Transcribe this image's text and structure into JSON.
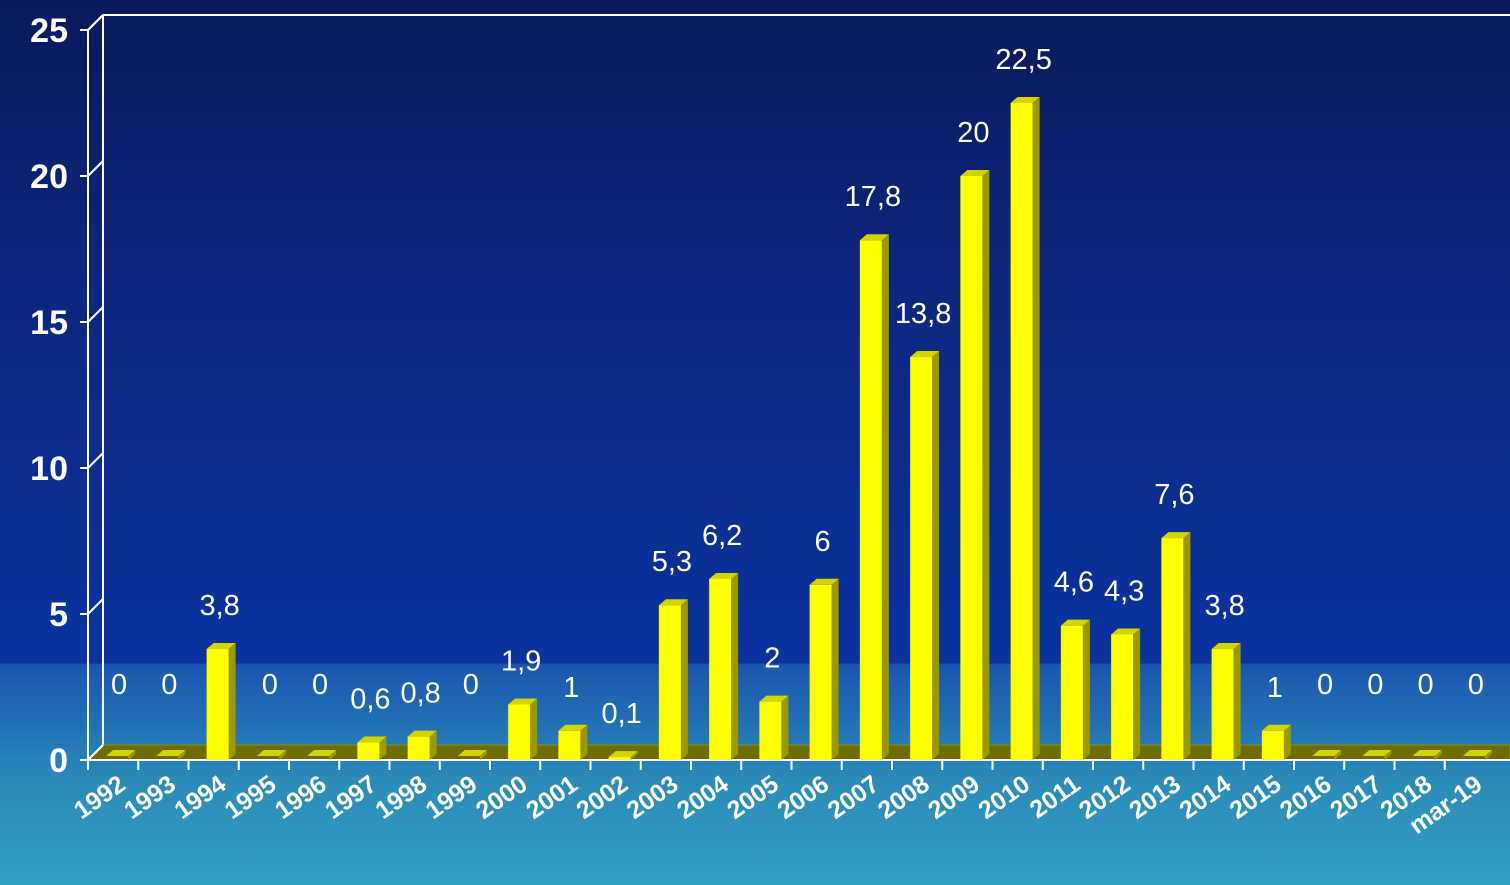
{
  "chart_data": {
    "type": "bar",
    "title": "",
    "xlabel": "",
    "ylabel": "",
    "ylim": [
      0,
      25
    ],
    "yticks": [
      "0",
      "5",
      "10",
      "15",
      "20",
      "25"
    ],
    "categories": [
      "1992",
      "1993",
      "1994",
      "1995",
      "1996",
      "1997",
      "1998",
      "1999",
      "2000",
      "2001",
      "2002",
      "2003",
      "2004",
      "2005",
      "2006",
      "2007",
      "2008",
      "2009",
      "2010",
      "2011",
      "2012",
      "2013",
      "2014",
      "2015",
      "2016",
      "2017",
      "2018",
      "mar-19"
    ],
    "values": [
      0,
      0,
      3.8,
      0,
      0,
      0.6,
      0.8,
      0,
      1.9,
      1,
      0.1,
      5.3,
      6.2,
      2,
      6,
      17.8,
      13.8,
      20,
      22.5,
      4.6,
      4.3,
      7.6,
      3.8,
      1,
      0,
      0,
      0,
      0
    ],
    "data_labels": [
      "0",
      "0",
      "3,8",
      "0",
      "0",
      "0,6",
      "0,8",
      "0",
      "1,9",
      "1",
      "0,1",
      "5,3",
      "6,2",
      "2",
      "6",
      "17,8",
      "13,8",
      "20",
      "22,5",
      "4,6",
      "4,3",
      "7,6",
      "3,8",
      "1",
      "0",
      "0",
      "0",
      "0"
    ],
    "grid": false,
    "bar_style": "3d",
    "colors": {
      "bar": "#ffff00",
      "bar_side": "#9a9a00",
      "bar_top": "#d4d400",
      "axis": "#ffffff"
    }
  }
}
